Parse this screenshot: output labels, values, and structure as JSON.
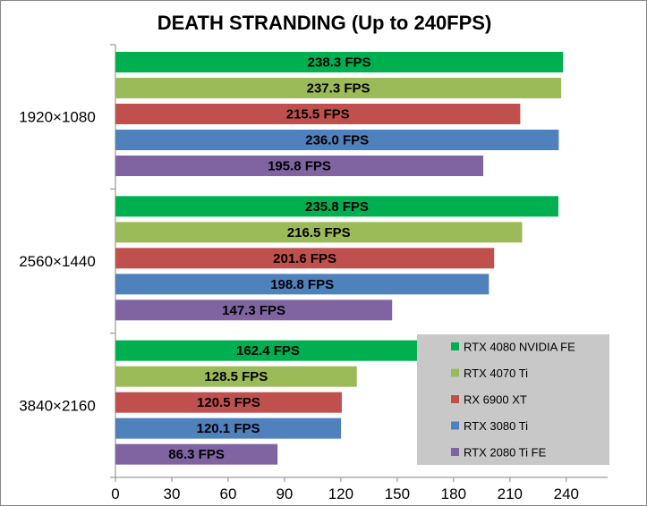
{
  "chart_data": {
    "type": "bar",
    "orientation": "horizontal",
    "title": "DEATH STRANDING (Up to 240FPS)",
    "categories": [
      "1920×1080",
      "2560×1440",
      "3840×2160"
    ],
    "xlim": [
      0,
      262
    ],
    "xticks": [
      0,
      30,
      60,
      90,
      120,
      150,
      180,
      210,
      240
    ],
    "value_suffix": " FPS",
    "legend_position": "bottom-right",
    "series": [
      {
        "name": "RTX 4080 NVIDIA FE",
        "color": "#00b050",
        "values": [
          238.3,
          235.8,
          162.4
        ]
      },
      {
        "name": "RTX 4070 Ti",
        "color": "#9bbb59",
        "values": [
          237.3,
          216.5,
          128.5
        ]
      },
      {
        "name": "RX 6900 XT",
        "color": "#c0504d",
        "values": [
          215.5,
          201.6,
          120.5
        ]
      },
      {
        "name": "RTX 3080 Ti",
        "color": "#4f81bd",
        "values": [
          236.0,
          198.8,
          120.1
        ]
      },
      {
        "name": "RTX 2080 Ti FE",
        "color": "#8064a2",
        "values": [
          195.8,
          147.3,
          86.3
        ]
      }
    ]
  }
}
